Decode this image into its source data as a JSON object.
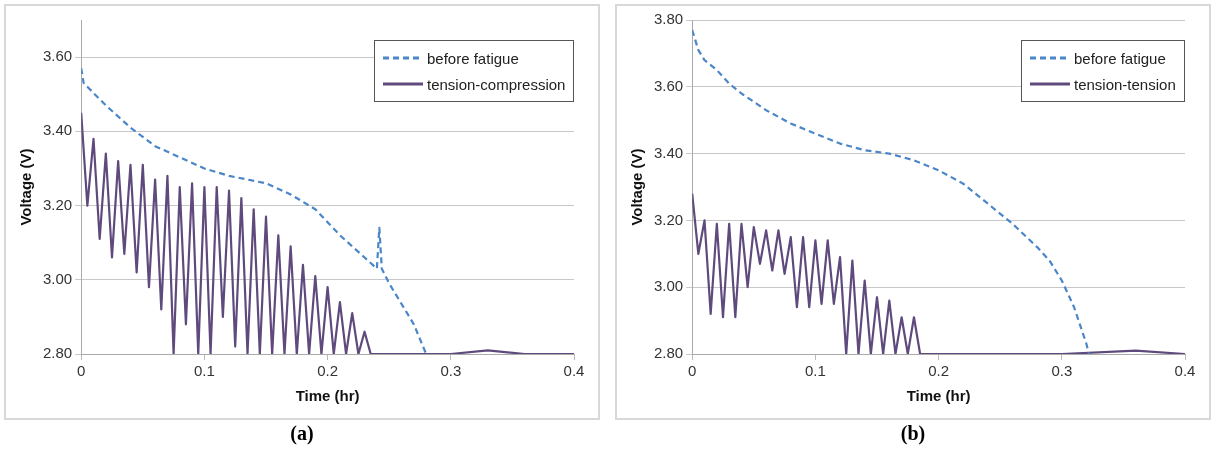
{
  "chart_data": [
    {
      "type": "line",
      "xlabel": "Time (hr)",
      "ylabel": "Voltage (V)",
      "xlim": [
        0,
        0.4
      ],
      "xticks": [
        0,
        0.1,
        0.2,
        0.3,
        0.4
      ],
      "ylim": [
        2.8,
        3.7
      ],
      "yticks": [
        {
          "value": 2.8,
          "label": "2.80"
        },
        {
          "value": 3.0,
          "label": "3.00"
        },
        {
          "value": 3.2,
          "label": "3.20"
        },
        {
          "value": 3.4,
          "label": "3.40"
        },
        {
          "value": 3.6,
          "label": "3.60"
        }
      ],
      "grid": "y",
      "legend": "top right",
      "marker": "none",
      "annotations": [
        "(a)"
      ],
      "series": [
        {
          "name": "before fatigue",
          "color": "#4a86c8",
          "line_style": "dashed",
          "x": [
            0,
            0.002,
            0.02,
            0.04,
            0.06,
            0.08,
            0.1,
            0.12,
            0.15,
            0.17,
            0.19,
            0.21,
            0.23,
            0.24,
            0.242,
            0.244,
            0.25,
            0.27,
            0.28
          ],
          "values": [
            3.57,
            3.53,
            3.47,
            3.41,
            3.36,
            3.33,
            3.3,
            3.28,
            3.26,
            3.23,
            3.19,
            3.12,
            3.06,
            3.03,
            3.14,
            3.03,
            2.99,
            2.88,
            2.8
          ]
        },
        {
          "name": "tension-compression",
          "color": "#5e4a7c",
          "line_style": "solid",
          "x": [
            0,
            0.005,
            0.01,
            0.015,
            0.02,
            0.025,
            0.03,
            0.035,
            0.04,
            0.045,
            0.05,
            0.055,
            0.06,
            0.065,
            0.07,
            0.075,
            0.08,
            0.085,
            0.09,
            0.095,
            0.1,
            0.105,
            0.11,
            0.115,
            0.12,
            0.125,
            0.13,
            0.135,
            0.14,
            0.145,
            0.15,
            0.155,
            0.16,
            0.165,
            0.17,
            0.175,
            0.18,
            0.185,
            0.19,
            0.195,
            0.2,
            0.205,
            0.21,
            0.215,
            0.22,
            0.225,
            0.23,
            0.235,
            0.24,
            0.3,
            0.33,
            0.36,
            0.4
          ],
          "values": [
            3.45,
            3.2,
            3.38,
            3.11,
            3.34,
            3.06,
            3.32,
            3.07,
            3.31,
            3.02,
            3.31,
            2.98,
            3.27,
            2.92,
            3.28,
            2.8,
            3.25,
            2.88,
            3.26,
            2.8,
            3.25,
            2.8,
            3.25,
            2.9,
            3.24,
            2.82,
            3.22,
            2.8,
            3.19,
            2.8,
            3.17,
            2.8,
            3.12,
            2.8,
            3.09,
            2.8,
            3.04,
            2.8,
            3.01,
            2.8,
            2.98,
            2.8,
            2.94,
            2.8,
            2.91,
            2.8,
            2.86,
            2.8,
            2.8,
            2.8,
            2.81,
            2.8,
            2.8
          ]
        }
      ]
    },
    {
      "type": "line",
      "xlabel": "Time (hr)",
      "ylabel": "Voltage (V)",
      "xlim": [
        0,
        0.4
      ],
      "xticks": [
        0,
        0.1,
        0.2,
        0.3,
        0.4
      ],
      "ylim": [
        2.8,
        3.8
      ],
      "yticks": [
        {
          "value": 2.8,
          "label": "2.80"
        },
        {
          "value": 3.0,
          "label": "3.00"
        },
        {
          "value": 3.2,
          "label": "3.20"
        },
        {
          "value": 3.4,
          "label": "3.40"
        },
        {
          "value": 3.6,
          "label": "3.60"
        },
        {
          "value": 3.8,
          "label": "3.80"
        }
      ],
      "grid": "y",
      "legend": "top right",
      "marker": "none",
      "annotations": [
        "(b)"
      ],
      "series": [
        {
          "name": "before fatigue",
          "color": "#4a86c8",
          "line_style": "dashed",
          "x": [
            0,
            0.005,
            0.01,
            0.02,
            0.03,
            0.04,
            0.06,
            0.08,
            0.1,
            0.12,
            0.14,
            0.16,
            0.18,
            0.2,
            0.22,
            0.24,
            0.26,
            0.28,
            0.29,
            0.3,
            0.31,
            0.32,
            0.322
          ],
          "values": [
            3.77,
            3.71,
            3.68,
            3.65,
            3.61,
            3.58,
            3.53,
            3.49,
            3.46,
            3.43,
            3.41,
            3.4,
            3.38,
            3.35,
            3.31,
            3.25,
            3.19,
            3.12,
            3.08,
            3.02,
            2.94,
            2.83,
            2.8
          ]
        },
        {
          "name": "tension-tension",
          "color": "#5e4a7c",
          "line_style": "solid",
          "x": [
            0,
            0.005,
            0.01,
            0.015,
            0.02,
            0.025,
            0.03,
            0.035,
            0.04,
            0.045,
            0.05,
            0.055,
            0.06,
            0.065,
            0.07,
            0.075,
            0.08,
            0.085,
            0.09,
            0.095,
            0.1,
            0.105,
            0.11,
            0.115,
            0.12,
            0.125,
            0.13,
            0.135,
            0.14,
            0.145,
            0.15,
            0.155,
            0.16,
            0.165,
            0.17,
            0.175,
            0.18,
            0.185,
            0.19,
            0.25,
            0.3,
            0.36,
            0.4
          ],
          "values": [
            3.28,
            3.1,
            3.2,
            2.92,
            3.19,
            2.91,
            3.19,
            2.91,
            3.19,
            3.0,
            3.18,
            3.07,
            3.17,
            3.05,
            3.17,
            3.04,
            3.15,
            2.94,
            3.15,
            2.94,
            3.14,
            2.95,
            3.14,
            2.95,
            3.09,
            2.8,
            3.08,
            2.8,
            3.02,
            2.8,
            2.97,
            2.8,
            2.96,
            2.8,
            2.91,
            2.8,
            2.91,
            2.8,
            2.8,
            2.8,
            2.8,
            2.81,
            2.8
          ]
        }
      ]
    }
  ]
}
